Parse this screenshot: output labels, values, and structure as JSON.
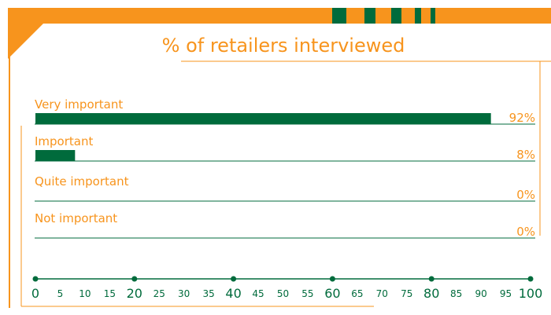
{
  "chart_data": {
    "type": "bar",
    "orientation": "horizontal",
    "title": "% of retailers interviewed",
    "categories": [
      "Very important",
      "Important",
      "Quite important",
      "Not important"
    ],
    "values": [
      92,
      8,
      0,
      0
    ],
    "value_labels": [
      "92%",
      "8%",
      "0%",
      "0%"
    ],
    "color": "#006b3c",
    "xlim": [
      0,
      100
    ],
    "xticks": [
      0,
      5,
      10,
      15,
      20,
      25,
      30,
      35,
      40,
      45,
      50,
      55,
      60,
      65,
      70,
      75,
      80,
      85,
      90,
      95,
      100
    ]
  }
}
